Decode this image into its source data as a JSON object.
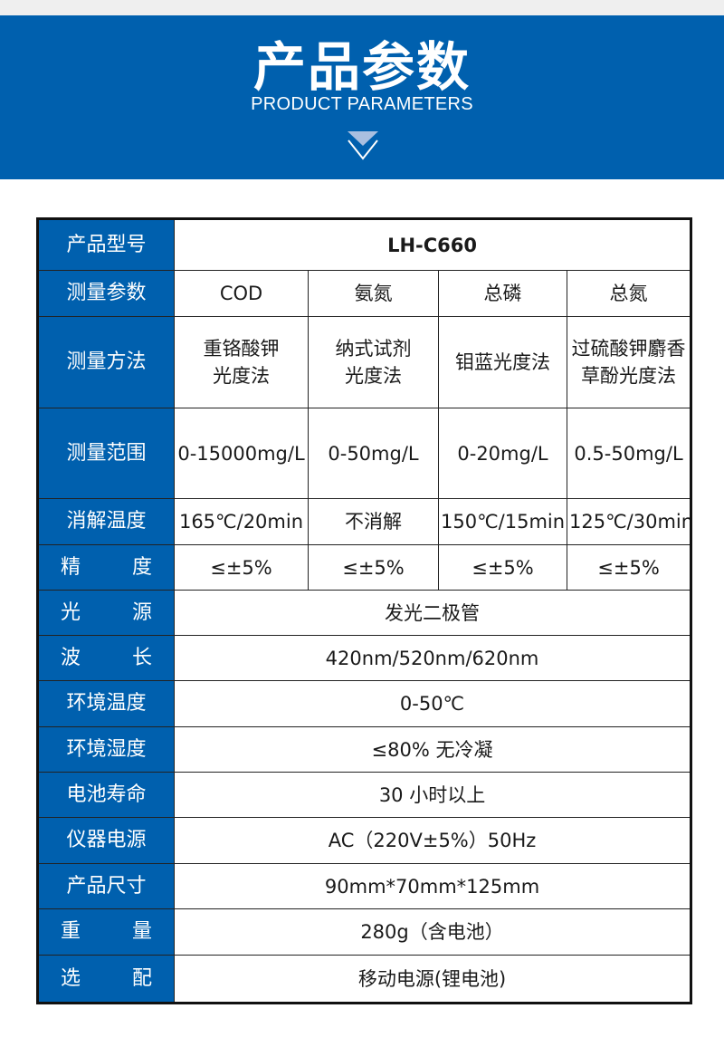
{
  "header": {
    "title": "产品参数",
    "subtitle": "PRODUCT PARAMETERS",
    "icon": "chevron-down-icon",
    "brand_color": "#0060ae"
  },
  "table": {
    "rows": [
      {
        "label": "产品型号",
        "values": [
          "LH-C660"
        ],
        "spaced": false
      },
      {
        "label": "测量参数",
        "values": [
          "COD",
          "氨氮",
          "总磷",
          "总氮"
        ],
        "spaced": false
      },
      {
        "label": "测量方法",
        "values": [
          "重铬酸钾\n光度法",
          "纳式试剂\n光度法",
          "钼蓝光度法",
          "过硫酸钾麝香\n草酚光度法"
        ],
        "spaced": false
      },
      {
        "label": "测量范围",
        "values": [
          "0-15000mg/L",
          "0-50mg/L",
          "0-20mg/L",
          "0.5-50mg/L"
        ],
        "spaced": false
      },
      {
        "label": "消解温度",
        "values": [
          "165℃/20min",
          "不消解",
          "150℃/15min",
          "125℃/30min"
        ],
        "spaced": false
      },
      {
        "label": "精度",
        "values": [
          "≤±5%",
          "≤±5%",
          "≤±5%",
          "≤±5%"
        ],
        "spaced": true
      },
      {
        "label": "光源",
        "values": [
          "发光二极管"
        ],
        "spaced": true
      },
      {
        "label": "波长",
        "values": [
          "420nm/520nm/620nm"
        ],
        "spaced": true
      },
      {
        "label": "环境温度",
        "values": [
          "0-50℃"
        ],
        "spaced": false
      },
      {
        "label": "环境湿度",
        "values": [
          "≤80% 无冷凝"
        ],
        "spaced": false
      },
      {
        "label": "电池寿命",
        "values": [
          "30 小时以上"
        ],
        "spaced": false
      },
      {
        "label": "仪器电源",
        "values": [
          "AC（220V±5%）50Hz"
        ],
        "spaced": false
      },
      {
        "label": "产品尺寸",
        "values": [
          "90mm*70mm*125mm"
        ],
        "spaced": false
      },
      {
        "label": "重量",
        "values": [
          "280g（含电池）"
        ],
        "spaced": true
      },
      {
        "label": "选配",
        "values": [
          "移动电源(锂电池)"
        ],
        "spaced": true
      }
    ]
  }
}
